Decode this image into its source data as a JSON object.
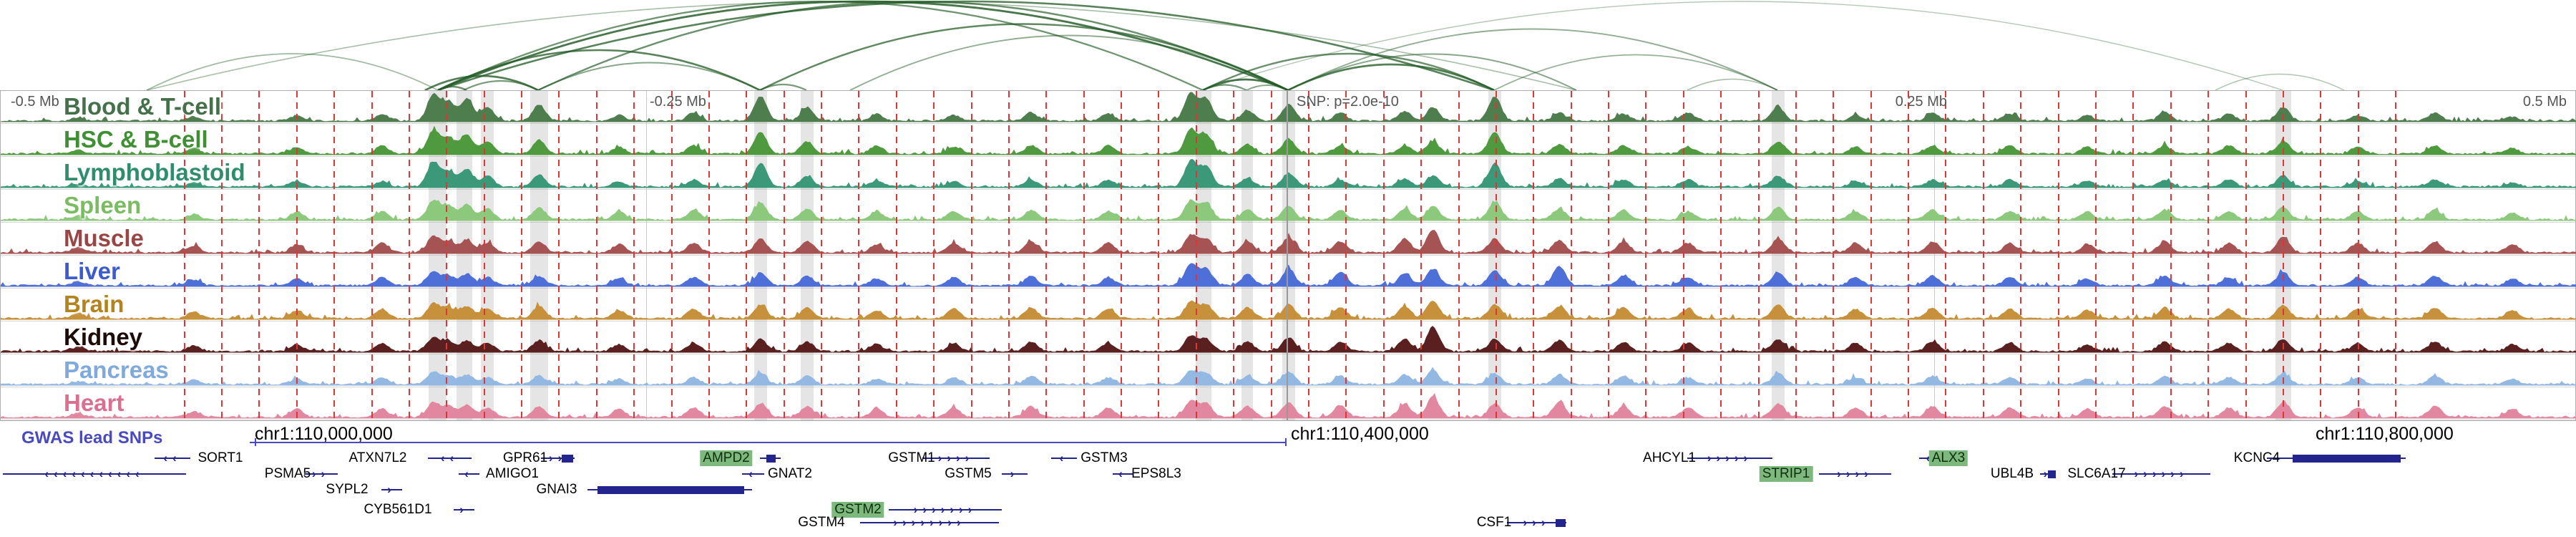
{
  "colors": {
    "red_line": "#e23434",
    "highlight": "rgba(150,150,150,0.25)",
    "arc_green": "#235c26",
    "gene": "#24248f",
    "gwas": "#4a4ac0",
    "snp_line": "#9a9a9a",
    "grid": "#cccccc",
    "scale_text": "#555555"
  },
  "chart_data": {
    "type": "area",
    "description": "Genome browser view of chr1 GWAS locus with chromatin interaction arcs, tissue signal tracks, SNP markers and gene annotations",
    "snp_annotation": "SNP: p=2.0e-10",
    "scale_labels": [
      {
        "text": "-0.5 Mb",
        "x": 0.004,
        "anchor": "start"
      },
      {
        "text": "-0.25 Mb",
        "x": 0.252,
        "anchor": "start"
      },
      {
        "text": "SNP: p=2.0e-10",
        "x": 0.503,
        "anchor": "start"
      },
      {
        "text": "0.25 Mb",
        "x": 0.7555,
        "anchor": "end"
      },
      {
        "text": "0.5 Mb",
        "x": 0.996,
        "anchor": "end"
      }
    ],
    "axis_labels": [
      {
        "text": "chr1:110,000,000",
        "x": 0.099
      },
      {
        "text": "chr1:110,400,000",
        "x": 0.501
      },
      {
        "text": "chr1:110,800,000",
        "x": 0.899
      }
    ],
    "snp_x": 0.4995,
    "grid_x": [
      0.2505,
      0.7505
    ],
    "red_lines": {
      "start": 0.071,
      "step": 0.01455,
      "count": 60
    },
    "highlights": [
      {
        "x": 0.1695,
        "w": 0.007
      },
      {
        "x": 0.18,
        "w": 0.006
      },
      {
        "x": 0.189,
        "w": 0.005
      },
      {
        "x": 0.209,
        "w": 0.007
      },
      {
        "x": 0.295,
        "w": 0.005
      },
      {
        "x": 0.313,
        "w": 0.005
      },
      {
        "x": 0.467,
        "w": 0.006
      },
      {
        "x": 0.484,
        "w": 0.0045
      },
      {
        "x": 0.5,
        "w": 0.005
      },
      {
        "x": 0.58,
        "w": 0.005
      },
      {
        "x": 0.69,
        "w": 0.005
      },
      {
        "x": 0.886,
        "w": 0.006
      }
    ],
    "arcs": [
      [
        0.057,
        0.612,
        0.3
      ],
      [
        0.057,
        0.17,
        0.35
      ],
      [
        0.165,
        0.209,
        0.85
      ],
      [
        0.17,
        0.181,
        0.7
      ],
      [
        0.18,
        0.209,
        0.6
      ],
      [
        0.17,
        0.295,
        0.8
      ],
      [
        0.209,
        0.295,
        0.5
      ],
      [
        0.295,
        0.313,
        0.6
      ],
      [
        0.17,
        0.467,
        0.65
      ],
      [
        0.17,
        0.5,
        0.9
      ],
      [
        0.209,
        0.5,
        0.7
      ],
      [
        0.295,
        0.5,
        0.75
      ],
      [
        0.33,
        0.5,
        0.45
      ],
      [
        0.17,
        0.58,
        0.8
      ],
      [
        0.467,
        0.484,
        0.6
      ],
      [
        0.467,
        0.5,
        0.9
      ],
      [
        0.484,
        0.5,
        0.5
      ],
      [
        0.467,
        0.58,
        0.7
      ],
      [
        0.5,
        0.58,
        0.85
      ],
      [
        0.5,
        0.612,
        0.5
      ],
      [
        0.58,
        0.69,
        0.4
      ],
      [
        0.5,
        0.69,
        0.45
      ],
      [
        0.655,
        0.69,
        0.3
      ],
      [
        0.467,
        0.886,
        0.22
      ],
      [
        0.86,
        0.91,
        0.25
      ]
    ],
    "peak_x": [
      0.03,
      0.075,
      0.115,
      0.148,
      0.168,
      0.174,
      0.181,
      0.189,
      0.209,
      0.24,
      0.269,
      0.295,
      0.313,
      0.34,
      0.37,
      0.4,
      0.43,
      0.462,
      0.468,
      0.484,
      0.5,
      0.52,
      0.545,
      0.556,
      0.58,
      0.605,
      0.63,
      0.655,
      0.69,
      0.72,
      0.75,
      0.78,
      0.81,
      0.84,
      0.865,
      0.886,
      0.915,
      0.945,
      0.975
    ],
    "tracks": [
      {
        "name": "Blood & T-cell",
        "fill": "#4e7d4e",
        "label_color": "#44704a",
        "amps": [
          0.1,
          0.15,
          0.2,
          0.25,
          0.95,
          0.7,
          0.8,
          0.5,
          0.6,
          0.2,
          0.3,
          0.9,
          0.5,
          0.25,
          0.2,
          0.3,
          0.25,
          1.0,
          0.8,
          0.4,
          0.6,
          0.3,
          0.35,
          0.5,
          0.9,
          0.3,
          0.25,
          0.3,
          0.5,
          0.2,
          0.3,
          0.25,
          0.2,
          0.3,
          0.25,
          0.5,
          0.2,
          0.3,
          0.15
        ]
      },
      {
        "name": "HSC & B-cell",
        "fill": "#4f9a3e",
        "label_color": "#3f8f33",
        "amps": [
          0.12,
          0.2,
          0.25,
          0.3,
          0.85,
          0.6,
          0.7,
          0.45,
          0.5,
          0.25,
          0.3,
          0.8,
          0.45,
          0.3,
          0.25,
          0.3,
          0.3,
          0.9,
          0.7,
          0.35,
          0.55,
          0.3,
          0.3,
          0.45,
          0.8,
          0.35,
          0.3,
          0.25,
          0.45,
          0.25,
          0.3,
          0.3,
          0.25,
          0.3,
          0.3,
          0.45,
          0.25,
          0.3,
          0.2
        ]
      },
      {
        "name": "Lymphoblastoid",
        "fill": "#3b9878",
        "label_color": "#2f8d6d",
        "amps": [
          0.1,
          0.15,
          0.2,
          0.2,
          0.9,
          0.55,
          0.65,
          0.4,
          0.45,
          0.2,
          0.25,
          0.85,
          0.4,
          0.2,
          0.2,
          0.25,
          0.25,
          0.95,
          0.75,
          0.3,
          0.5,
          0.25,
          0.3,
          0.4,
          0.85,
          0.3,
          0.25,
          0.25,
          0.4,
          0.2,
          0.25,
          0.25,
          0.2,
          0.25,
          0.25,
          0.4,
          0.2,
          0.25,
          0.15
        ]
      },
      {
        "name": "Spleen",
        "fill": "#8cc97c",
        "label_color": "#79bd60",
        "amps": [
          0.15,
          0.2,
          0.3,
          0.3,
          0.7,
          0.5,
          0.55,
          0.4,
          0.45,
          0.3,
          0.35,
          0.6,
          0.4,
          0.3,
          0.3,
          0.35,
          0.3,
          0.7,
          0.6,
          0.35,
          0.5,
          0.35,
          0.4,
          0.5,
          0.65,
          0.4,
          0.35,
          0.3,
          0.45,
          0.3,
          0.35,
          0.3,
          0.3,
          0.35,
          0.3,
          0.45,
          0.3,
          0.35,
          0.25
        ]
      },
      {
        "name": "Muscle",
        "fill": "#a65353",
        "label_color": "#9a4545",
        "amps": [
          0.2,
          0.25,
          0.3,
          0.35,
          0.6,
          0.4,
          0.45,
          0.35,
          0.4,
          0.3,
          0.35,
          0.5,
          0.4,
          0.3,
          0.35,
          0.4,
          0.35,
          0.65,
          0.5,
          0.4,
          0.55,
          0.4,
          0.5,
          0.85,
          0.5,
          0.45,
          0.4,
          0.35,
          0.5,
          0.35,
          0.4,
          0.35,
          0.3,
          0.4,
          0.35,
          0.55,
          0.35,
          0.4,
          0.3
        ]
      },
      {
        "name": "Liver",
        "fill": "#4e6fd8",
        "label_color": "#3a5ccf",
        "amps": [
          0.15,
          0.2,
          0.25,
          0.3,
          0.5,
          0.35,
          0.4,
          0.3,
          0.35,
          0.25,
          0.3,
          0.45,
          0.35,
          0.25,
          0.3,
          0.35,
          0.3,
          0.8,
          0.6,
          0.4,
          0.6,
          0.5,
          0.45,
          0.6,
          0.55,
          0.7,
          0.35,
          0.3,
          0.45,
          0.3,
          0.35,
          0.3,
          0.25,
          0.35,
          0.3,
          0.5,
          0.3,
          0.35,
          0.25
        ]
      },
      {
        "name": "Brain",
        "fill": "#c6913a",
        "label_color": "#b5831c",
        "amps": [
          0.2,
          0.25,
          0.3,
          0.35,
          0.55,
          0.4,
          0.45,
          0.35,
          0.45,
          0.3,
          0.35,
          0.5,
          0.4,
          0.3,
          0.35,
          0.4,
          0.35,
          0.6,
          0.5,
          0.4,
          0.5,
          0.4,
          0.45,
          0.65,
          0.5,
          0.45,
          0.4,
          0.35,
          0.5,
          0.35,
          0.4,
          0.35,
          0.3,
          0.4,
          0.35,
          0.5,
          0.35,
          0.4,
          0.3
        ]
      },
      {
        "name": "Kidney",
        "fill": "#5a2020",
        "label_color": "#1c0b06",
        "amps": [
          0.15,
          0.2,
          0.25,
          0.3,
          0.5,
          0.35,
          0.4,
          0.3,
          0.4,
          0.25,
          0.3,
          0.45,
          0.35,
          0.25,
          0.3,
          0.35,
          0.3,
          0.55,
          0.45,
          0.35,
          0.5,
          0.35,
          0.45,
          0.9,
          0.45,
          0.4,
          0.35,
          0.3,
          0.45,
          0.3,
          0.35,
          0.3,
          0.25,
          0.35,
          0.3,
          0.45,
          0.3,
          0.35,
          0.25
        ]
      },
      {
        "name": "Pancreas",
        "fill": "#93b8e2",
        "label_color": "#80aadc",
        "amps": [
          0.1,
          0.15,
          0.2,
          0.25,
          0.45,
          0.3,
          0.35,
          0.25,
          0.3,
          0.2,
          0.25,
          0.4,
          0.3,
          0.2,
          0.25,
          0.3,
          0.25,
          0.5,
          0.4,
          0.3,
          0.45,
          0.3,
          0.35,
          0.5,
          0.4,
          0.35,
          0.3,
          0.25,
          0.4,
          0.25,
          0.3,
          0.25,
          0.2,
          0.3,
          0.25,
          0.4,
          0.25,
          0.3,
          0.2
        ]
      },
      {
        "name": "Heart",
        "fill": "#e287a0",
        "label_color": "#db6f8f",
        "amps": [
          0.15,
          0.2,
          0.3,
          0.3,
          0.55,
          0.4,
          0.45,
          0.35,
          0.4,
          0.3,
          0.35,
          0.5,
          0.4,
          0.3,
          0.35,
          0.4,
          0.35,
          0.6,
          0.5,
          0.4,
          0.55,
          0.45,
          0.5,
          0.75,
          0.5,
          0.55,
          0.4,
          0.35,
          0.5,
          0.35,
          0.4,
          0.35,
          0.3,
          0.4,
          0.35,
          0.55,
          0.35,
          0.4,
          0.3
        ]
      }
    ],
    "gwas": {
      "label": "GWAS lead SNPs",
      "line": [
        0.097,
        0.4995
      ],
      "ticks": [
        0.099,
        0.499
      ]
    },
    "genes": [
      {
        "name": "SORT1",
        "row": 0,
        "label_x": 0.0855,
        "line": [
          0.06,
          0.074
        ],
        "dir": "L"
      },
      {
        "name": "ATXN7L2",
        "row": 0,
        "label_x": 0.1467,
        "line": [
          0.166,
          0.183
        ],
        "dir": "L"
      },
      {
        "name": "GPR61",
        "row": 0,
        "label_x": 0.204,
        "line": [
          0.21,
          0.223
        ],
        "dir": "R",
        "thick": [
          0.218,
          0.2225
        ]
      },
      {
        "name": "AMPD2",
        "row": 0,
        "label_x": 0.282,
        "line": [
          0.295,
          0.303
        ],
        "dir": "R",
        "thick": [
          0.2975,
          0.301
        ],
        "hl": true
      },
      {
        "name": "GSTM1",
        "row": 0,
        "label_x": 0.354,
        "line": [
          0.358,
          0.384
        ],
        "dir": "R"
      },
      {
        "name": "GSTM3",
        "row": 0,
        "label_x": 0.4286,
        "line": [
          0.408,
          0.418
        ],
        "dir": "L"
      },
      {
        "name": "AHCYL1",
        "row": 0,
        "label_x": 0.648,
        "line": [
          0.655,
          0.688
        ],
        "dir": "R"
      },
      {
        "name": "ALX3",
        "row": 0,
        "label_x": 0.7564,
        "line": [
          0.745,
          0.754
        ],
        "dir": "L",
        "hl": true
      },
      {
        "name": "KCNC4",
        "row": 0,
        "label_x": 0.876,
        "line": [
          0.88,
          0.934
        ],
        "dir": "R",
        "thick": [
          0.89,
          0.932
        ]
      },
      {
        "name": "",
        "row": 1,
        "label_x": null,
        "line": [
          0.001,
          0.072
        ],
        "dir": "L"
      },
      {
        "name": "PSMA5",
        "row": 1,
        "label_x": 0.1116,
        "line": [
          0.118,
          0.131
        ],
        "dir": "R"
      },
      {
        "name": "AMIGO1",
        "row": 1,
        "label_x": 0.199,
        "line": [
          0.178,
          0.186
        ],
        "dir": "L"
      },
      {
        "name": "GNAT2",
        "row": 1,
        "label_x": 0.3068,
        "line": [
          0.288,
          0.2965
        ],
        "dir": "L"
      },
      {
        "name": "GSTM5",
        "row": 1,
        "label_x": 0.3757,
        "line": [
          0.389,
          0.399
        ],
        "dir": "R"
      },
      {
        "name": "EPS8L3",
        "row": 1,
        "label_x": 0.449,
        "line": [
          0.432,
          0.44
        ],
        "dir": "L"
      },
      {
        "name": "STRIP1",
        "row": 1,
        "label_x": 0.6932,
        "line": [
          0.706,
          0.734
        ],
        "dir": "R",
        "hl": true
      },
      {
        "name": "UBL4B",
        "row": 1,
        "label_x": 0.781,
        "line": [
          0.792,
          0.798
        ],
        "dir": "R",
        "thick": [
          0.795,
          0.798
        ]
      },
      {
        "name": "SLC6A17",
        "row": 1,
        "label_x": 0.8138,
        "line": [
          0.82,
          0.858
        ],
        "dir": "R"
      },
      {
        "name": "SYPL2",
        "row": 2,
        "label_x": 0.1346,
        "line": [
          0.148,
          0.156
        ],
        "dir": "R"
      },
      {
        "name": "GNAI3",
        "row": 2,
        "label_x": 0.216,
        "line": [
          0.228,
          0.292
        ],
        "dir": "R",
        "thick": [
          0.232,
          0.289
        ]
      },
      {
        "name": "CYB561D1",
        "row": 3,
        "label_x": 0.1544,
        "line": [
          0.176,
          0.184
        ],
        "dir": "R"
      },
      {
        "name": "GSTM2",
        "row": 3,
        "label_x": 0.333,
        "line": [
          0.345,
          0.389
        ],
        "dir": "R",
        "hl": true
      },
      {
        "name": "GSTM4",
        "row": 4,
        "label_x": 0.319,
        "line": [
          0.334,
          0.388
        ],
        "dir": "R"
      },
      {
        "name": "CSF1",
        "row": 4,
        "label_x": 0.58,
        "line": [
          0.585,
          0.608
        ],
        "dir": "R",
        "thick": [
          0.604,
          0.608
        ]
      }
    ]
  }
}
